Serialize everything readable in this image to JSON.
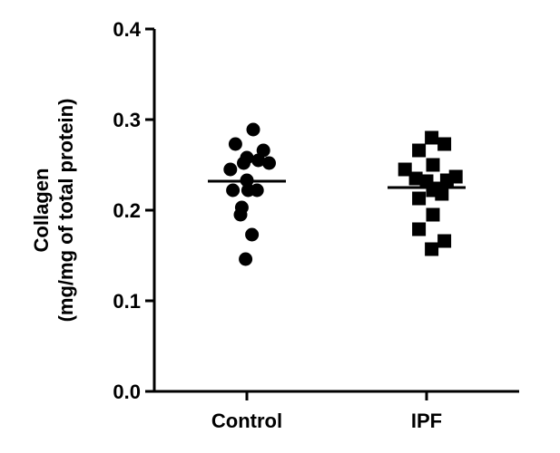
{
  "chart_data": {
    "type": "scatter",
    "title": "",
    "ylabel_lines": [
      "Collagen",
      "(mg/mg of total protein)"
    ],
    "xlabel": "",
    "ylim": [
      0,
      0.4
    ],
    "yticks": [
      "0.0",
      "0.1",
      "0.2",
      "0.3",
      "0.4"
    ],
    "categories": [
      "Control",
      "IPF"
    ],
    "grid": false,
    "legend": "none",
    "colors": {
      "marker": "#000000",
      "axis": "#000000"
    },
    "series": [
      {
        "category": "Control",
        "marker": "circle",
        "mean": 0.232,
        "points": [
          {
            "x": 0.5,
            "y": 0.289
          },
          {
            "x": -0.9,
            "y": 0.273
          },
          {
            "x": 0.0,
            "y": 0.258
          },
          {
            "x": 1.3,
            "y": 0.266
          },
          {
            "x": -0.25,
            "y": 0.252
          },
          {
            "x": 0.9,
            "y": 0.255
          },
          {
            "x": 1.75,
            "y": 0.252
          },
          {
            "x": -1.3,
            "y": 0.245
          },
          {
            "x": 0.0,
            "y": 0.233
          },
          {
            "x": -1.1,
            "y": 0.222
          },
          {
            "x": 0.1,
            "y": 0.222
          },
          {
            "x": 0.8,
            "y": 0.222
          },
          {
            "x": -0.4,
            "y": 0.203
          },
          {
            "x": -0.5,
            "y": 0.195
          },
          {
            "x": 0.4,
            "y": 0.173
          },
          {
            "x": -0.1,
            "y": 0.146
          }
        ]
      },
      {
        "category": "IPF",
        "marker": "square",
        "mean": 0.225,
        "points": [
          {
            "x": 0.4,
            "y": 0.28
          },
          {
            "x": 1.4,
            "y": 0.273
          },
          {
            "x": -0.6,
            "y": 0.266
          },
          {
            "x": 0.5,
            "y": 0.25
          },
          {
            "x": -1.7,
            "y": 0.245
          },
          {
            "x": -0.85,
            "y": 0.235
          },
          {
            "x": 0.0,
            "y": 0.232
          },
          {
            "x": 1.6,
            "y": 0.233
          },
          {
            "x": 2.3,
            "y": 0.237
          },
          {
            "x": 0.5,
            "y": 0.222
          },
          {
            "x": 0.9,
            "y": 0.224
          },
          {
            "x": 1.2,
            "y": 0.218
          },
          {
            "x": -0.6,
            "y": 0.213
          },
          {
            "x": 0.5,
            "y": 0.195
          },
          {
            "x": -0.6,
            "y": 0.179
          },
          {
            "x": 1.4,
            "y": 0.166
          },
          {
            "x": 0.4,
            "y": 0.157
          }
        ]
      }
    ]
  }
}
